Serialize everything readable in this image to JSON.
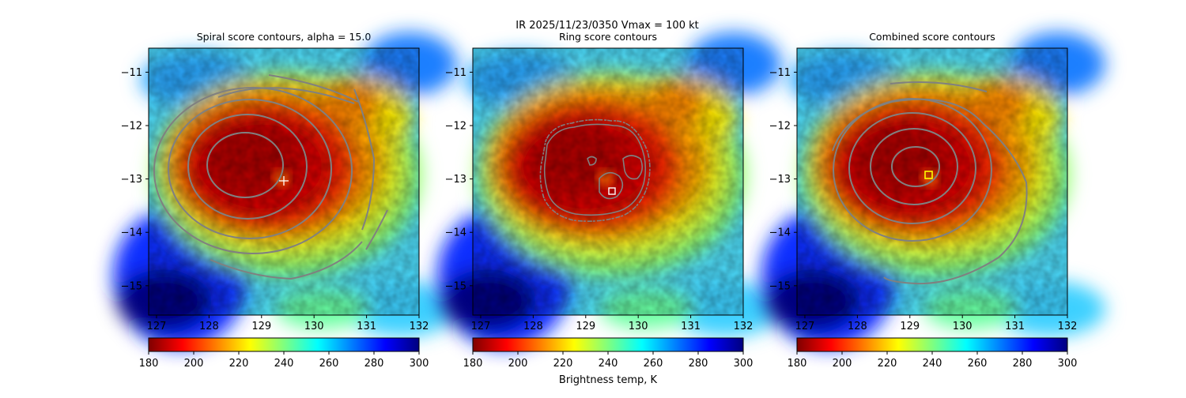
{
  "suptitle": "IR  2025/11/23/0350    Vmax = 100 kt",
  "colorbar": {
    "label": "Brightness temp, K",
    "ticks": [
      "180",
      "200",
      "220",
      "240",
      "260",
      "280",
      "300"
    ],
    "min": 180,
    "max": 300,
    "cmap": [
      "#7f0000",
      "#ff0000",
      "#ff7f00",
      "#ffff00",
      "#7fff7f",
      "#00ffff",
      "#007fff",
      "#0000ff",
      "#00007f"
    ]
  },
  "chart_data": [
    {
      "type": "heatmap",
      "title": "Spiral score contours, alpha = 15.0",
      "xlim": [
        126.85,
        132.0
      ],
      "ylim": [
        -15.55,
        -10.55
      ],
      "xticks": [
        "127",
        "128",
        "129",
        "130",
        "131",
        "132"
      ],
      "yticks": [
        "−11",
        "−12",
        "−13",
        "−14",
        "−15"
      ],
      "marker": {
        "type": "plus",
        "x": 129.4,
        "y": -13.05,
        "color": "#ffffff"
      },
      "contour_levels": 6
    },
    {
      "type": "heatmap",
      "title": "Ring score contours",
      "xlim": [
        126.85,
        132.0
      ],
      "ylim": [
        -15.55,
        -10.55
      ],
      "xticks": [
        "127",
        "128",
        "129",
        "130",
        "131",
        "132"
      ],
      "yticks": [
        "−11",
        "−12",
        "−13",
        "−14",
        "−15"
      ],
      "marker": {
        "type": "square",
        "x": 129.5,
        "y": -13.27,
        "color": "#ffffff"
      },
      "contour_levels": 3
    },
    {
      "type": "heatmap",
      "title": "Combined score contours",
      "xlim": [
        126.85,
        132.0
      ],
      "ylim": [
        -15.55,
        -10.55
      ],
      "xticks": [
        "127",
        "128",
        "129",
        "130",
        "131",
        "132"
      ],
      "yticks": [
        "−11",
        "−12",
        "−13",
        "−14",
        "−15"
      ],
      "marker": {
        "type": "square",
        "x": 129.35,
        "y": -12.95,
        "color": "#ffff00"
      },
      "contour_levels": 6
    }
  ]
}
